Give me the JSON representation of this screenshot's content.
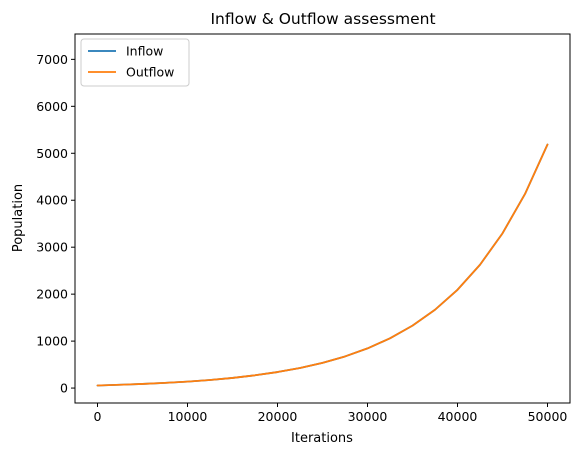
{
  "chart_data": {
    "type": "line",
    "title": "Inflow & Outflow assessment",
    "xlabel": "Iterations",
    "ylabel": "Population",
    "xlim": [
      -2500,
      52500
    ],
    "ylim": [
      -318,
      7540
    ],
    "xticks": [
      0,
      10000,
      20000,
      30000,
      40000,
      50000
    ],
    "xtick_labels": [
      "0",
      "10000",
      "20000",
      "30000",
      "40000",
      "50000"
    ],
    "yticks": [
      0,
      1000,
      2000,
      3000,
      4000,
      5000,
      6000,
      7000
    ],
    "ytick_labels": [
      "0",
      "1000",
      "2000",
      "3000",
      "4000",
      "5000",
      "6000",
      "7000"
    ],
    "grid": false,
    "legend_position": "top-left",
    "x": [
      0,
      2500,
      5000,
      7500,
      10000,
      12500,
      15000,
      17500,
      20000,
      22500,
      25000,
      27500,
      30000,
      32500,
      35000,
      37500,
      40000,
      42500,
      45000,
      47500,
      50000
    ],
    "series": [
      {
        "name": "Inflow",
        "color": "#1f77b4",
        "values": [
          55,
          70,
          88,
          110,
          138,
          172,
          216,
          272,
          341,
          428,
          537,
          673,
          845,
          1060,
          1330,
          1668,
          2093,
          2626,
          3295,
          4134,
          5186
        ]
      },
      {
        "name": "Outflow",
        "color": "#ff7f0e",
        "values": [
          55,
          70,
          88,
          110,
          138,
          172,
          216,
          272,
          341,
          428,
          537,
          673,
          845,
          1060,
          1330,
          1668,
          2093,
          2626,
          3295,
          4134,
          5186
        ]
      }
    ]
  }
}
